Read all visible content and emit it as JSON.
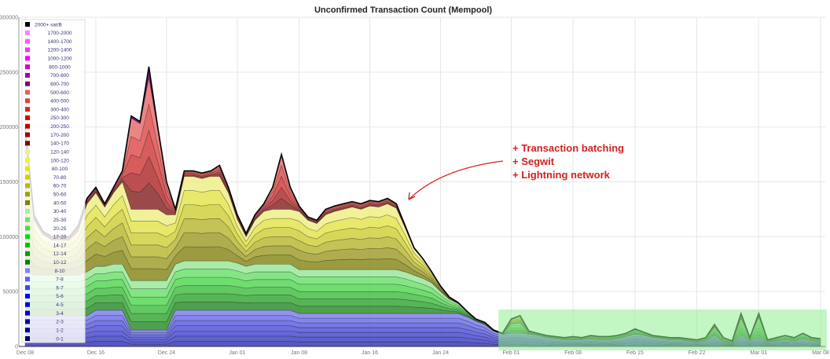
{
  "chart_data": {
    "type": "area",
    "stacked": true,
    "title": "Unconfirmed Transaction Count (Mempool)",
    "xlabel": "",
    "ylabel": "",
    "ylim": [
      0,
      300000
    ],
    "y_ticks": [
      "0",
      "50000",
      "100000",
      "150000",
      "200000",
      "250000",
      "300000"
    ],
    "x_ticks": [
      "Dec 08",
      "Dec 16",
      "Dec 24",
      "Jan 01",
      "Jan 08",
      "Jan 16",
      "Jan 24",
      "Feb 01",
      "Feb 08",
      "Feb 15",
      "Feb 22",
      "Mar 01",
      "Mar 08"
    ],
    "grid": true,
    "legend_placement": "top-left",
    "x": [
      "Dec 08",
      "Dec 09",
      "Dec 10",
      "Dec 11",
      "Dec 12",
      "Dec 13",
      "Dec 14",
      "Dec 15",
      "Dec 16",
      "Dec 17",
      "Dec 18",
      "Dec 19",
      "Dec 20",
      "Dec 21",
      "Dec 22",
      "Dec 23",
      "Dec 24",
      "Dec 25",
      "Dec 26",
      "Dec 27",
      "Dec 28",
      "Dec 29",
      "Dec 30",
      "Dec 31",
      "Jan 01",
      "Jan 02",
      "Jan 03",
      "Jan 04",
      "Jan 05",
      "Jan 06",
      "Jan 07",
      "Jan 08",
      "Jan 09",
      "Jan 10",
      "Jan 11",
      "Jan 12",
      "Jan 13",
      "Jan 14",
      "Jan 15",
      "Jan 16",
      "Jan 17",
      "Jan 18",
      "Jan 19",
      "Jan 20",
      "Jan 21",
      "Jan 22",
      "Jan 23",
      "Jan 24",
      "Jan 25",
      "Jan 26",
      "Jan 27",
      "Jan 28",
      "Jan 29",
      "Jan 30",
      "Jan 31",
      "Feb 01",
      "Feb 02",
      "Feb 03",
      "Feb 04",
      "Feb 05",
      "Feb 06",
      "Feb 07",
      "Feb 08",
      "Feb 09",
      "Feb 10",
      "Feb 11",
      "Feb 12",
      "Feb 13",
      "Feb 14",
      "Feb 15",
      "Feb 16",
      "Feb 17",
      "Feb 18",
      "Feb 19",
      "Feb 20",
      "Feb 21",
      "Feb 22",
      "Feb 23",
      "Feb 24",
      "Feb 25",
      "Feb 26",
      "Feb 27",
      "Feb 28",
      "Mar 01",
      "Mar 02",
      "Mar 03",
      "Mar 04",
      "Mar 05",
      "Mar 06",
      "Mar 07",
      "Mar 08"
    ],
    "series": [
      {
        "color": "#4f4fcf",
        "values": [
          28000,
          28000,
          28000,
          28000,
          28000,
          28000,
          28000,
          28000,
          33000,
          33000,
          33000,
          33000,
          15000,
          15000,
          15000,
          15000,
          15000,
          33000,
          33000,
          33000,
          33000,
          33000,
          33000,
          33000,
          33000,
          33000,
          33000,
          33000,
          33000,
          33000,
          33000,
          30000,
          30000,
          30000,
          30000,
          30000,
          30000,
          30000,
          30000,
          30000,
          30000,
          30000,
          30000,
          30000,
          30000,
          30000,
          30000,
          30000,
          30000,
          30000,
          27000,
          23000,
          20000,
          14000,
          11000,
          12000,
          12000,
          11000,
          10000,
          8000,
          7000,
          6000,
          6000,
          6000,
          7000,
          6000,
          6000,
          7000,
          9000,
          11000,
          10000,
          8000,
          7000,
          6000,
          6000,
          5000,
          4000,
          5000,
          10000,
          4000,
          3000,
          10000,
          5000,
          8000,
          4000,
          5000,
          6000,
          5000,
          7000,
          5000,
          4000
        ]
      },
      {
        "color": "#4fd04f",
        "values": [
          40000,
          37000,
          37000,
          37000,
          37000,
          37000,
          37000,
          40000,
          40000,
          40000,
          42000,
          42000,
          45000,
          45000,
          45000,
          45000,
          45000,
          42000,
          45000,
          45000,
          45000,
          45000,
          45000,
          45000,
          43000,
          40000,
          42000,
          42000,
          42000,
          42000,
          42000,
          40000,
          40000,
          40000,
          40000,
          40000,
          40000,
          40000,
          40000,
          40000,
          40000,
          40000,
          40000,
          38000,
          35000,
          32000,
          28000,
          20000,
          13000,
          9000,
          5000,
          2000,
          2000,
          1000,
          1000,
          8000,
          9000,
          2000,
          2000,
          2000,
          2000,
          2000,
          3000,
          2000,
          3000,
          3000,
          3000,
          3000,
          3000,
          4000,
          3000,
          2000,
          2000,
          2000,
          2000,
          2000,
          2000,
          3000,
          7000,
          4000,
          2000,
          15000,
          3000,
          18000,
          2000,
          3000,
          4000,
          3000,
          5000,
          3000,
          3000
        ]
      },
      {
        "color": "#c8c040",
        "values": [
          122000,
          50000,
          37000,
          32000,
          32000,
          32000,
          40000,
          62000,
          67000,
          54000,
          65000,
          75000,
          65000,
          65000,
          65000,
          65000,
          60000,
          45000,
          77000,
          77000,
          75000,
          77000,
          77000,
          62000,
          40000,
          27000,
          40000,
          48000,
          50000,
          50000,
          50000,
          53000,
          45000,
          42000,
          50000,
          53000,
          55000,
          57000,
          55000,
          58000,
          57000,
          60000,
          56000,
          40000,
          24000,
          18000,
          10000,
          5000,
          2000,
          1000,
          0,
          0,
          0,
          0,
          0,
          5000,
          7000,
          1000,
          0,
          0,
          0,
          0,
          0,
          0,
          0,
          0,
          0,
          0,
          0,
          1000,
          0,
          0,
          0,
          0,
          0,
          0,
          0,
          0,
          3000,
          0,
          0,
          5000,
          0,
          4000,
          0,
          0,
          0,
          0,
          0,
          0,
          0
        ]
      },
      {
        "color": "#e04848",
        "values": [
          10000,
          5000,
          3000,
          3000,
          3000,
          3000,
          5000,
          5000,
          5000,
          3000,
          5000,
          10000,
          83000,
          78000,
          120000,
          73000,
          30000,
          5000,
          5000,
          5000,
          5000,
          5000,
          10000,
          5000,
          4000,
          3000,
          5000,
          7000,
          20000,
          50000,
          20000,
          5000,
          3000,
          3000,
          5000,
          5000,
          5000,
          5000,
          5000,
          5000,
          5000,
          5000,
          4000,
          2000,
          1000,
          0,
          0,
          0,
          0,
          0,
          0,
          0,
          0,
          0,
          0,
          0,
          0,
          0,
          0,
          0,
          0,
          0,
          0,
          0,
          0,
          0,
          0,
          0,
          0,
          0,
          0,
          0,
          0,
          0,
          0,
          0,
          0,
          0,
          0,
          0,
          0,
          0,
          0,
          0,
          0,
          0,
          0,
          0,
          0,
          0,
          0
        ]
      },
      {
        "color": "#a020a0",
        "values": [
          0,
          0,
          0,
          0,
          0,
          0,
          0,
          0,
          0,
          0,
          0,
          0,
          2000,
          2000,
          10000,
          2000,
          0,
          0,
          0,
          0,
          0,
          0,
          0,
          0,
          0,
          0,
          0,
          0,
          0,
          0,
          0,
          0,
          0,
          0,
          0,
          0,
          0,
          0,
          0,
          0,
          0,
          0,
          0,
          0,
          0,
          0,
          0,
          0,
          0,
          0,
          0,
          0,
          0,
          0,
          0,
          0,
          0,
          0,
          0,
          0,
          0,
          0,
          0,
          0,
          0,
          0,
          0,
          0,
          0,
          0,
          0,
          0,
          0,
          0,
          0,
          0,
          0,
          0,
          0,
          0,
          0,
          0,
          0,
          0,
          0,
          0,
          0,
          0,
          0,
          0,
          0
        ]
      }
    ],
    "legend": [
      {
        "label": "2000+ sat/B",
        "color": "#000000"
      },
      {
        "label": "1700-2000",
        "color": "#ff80ff"
      },
      {
        "label": "1400-1700",
        "color": "#ff55ff"
      },
      {
        "label": "1200-1400",
        "color": "#ff33ff"
      },
      {
        "label": "1000-1200",
        "color": "#ff00ff"
      },
      {
        "label": "800-1000",
        "color": "#d000d0"
      },
      {
        "label": "700-800",
        "color": "#a000a0"
      },
      {
        "label": "600-700",
        "color": "#800080"
      },
      {
        "label": "500-600",
        "color": "#e06060"
      },
      {
        "label": "400-500",
        "color": "#e04040"
      },
      {
        "label": "300-400",
        "color": "#e02020"
      },
      {
        "label": "250-300",
        "color": "#e00000"
      },
      {
        "label": "200-250",
        "color": "#c00000"
      },
      {
        "label": "170-200",
        "color": "#a00000"
      },
      {
        "label": "140-170",
        "color": "#800000"
      },
      {
        "label": "120-140",
        "color": "#f0f080"
      },
      {
        "label": "100-120",
        "color": "#f0f040"
      },
      {
        "label": "80-100",
        "color": "#e8e800"
      },
      {
        "label": "70-80",
        "color": "#d0d000"
      },
      {
        "label": "60-70",
        "color": "#b8b800"
      },
      {
        "label": "50-60",
        "color": "#a0a000"
      },
      {
        "label": "40-50",
        "color": "#808000"
      },
      {
        "label": "30-40",
        "color": "#a0f0a0"
      },
      {
        "label": "25-30",
        "color": "#70e070"
      },
      {
        "label": "20-25",
        "color": "#40e040"
      },
      {
        "label": "17-20",
        "color": "#00e000"
      },
      {
        "label": "14-17",
        "color": "#00c000"
      },
      {
        "label": "12-14",
        "color": "#00a000"
      },
      {
        "label": "10-12",
        "color": "#008000"
      },
      {
        "label": "8-10",
        "color": "#8080ff"
      },
      {
        "label": "7-8",
        "color": "#6060ff"
      },
      {
        "label": "6-7",
        "color": "#4040ff"
      },
      {
        "label": "5-6",
        "color": "#0000ff"
      },
      {
        "label": "4-5",
        "color": "#0000e0"
      },
      {
        "label": "3-4",
        "color": "#0000c0"
      },
      {
        "label": "2-3",
        "color": "#0000a0"
      },
      {
        "label": "1-2",
        "color": "#000090"
      },
      {
        "label": "0-1",
        "color": "#000060"
      }
    ],
    "annotation": {
      "lines": [
        "+ Transaction batching",
        "+ Segwit",
        "+ Lightning network"
      ],
      "color": "#d42020",
      "arrow_target": "Jan 22",
      "highlight_range": [
        "Jan 31",
        "Mar 08"
      ],
      "highlight_color": "#90ee90"
    }
  }
}
